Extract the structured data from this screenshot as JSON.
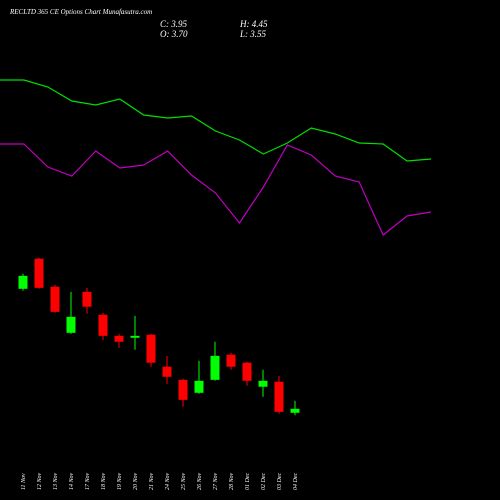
{
  "chart_data": {
    "type": "candlestick",
    "title": "RECLTD 365 CE Options Chart Munafasutra.com",
    "ohlc_labels": {
      "close": "C: 3.95",
      "high": "H: 4.45",
      "open": "O: 3.70",
      "low": "L: 3.55"
    },
    "categories": [
      "11 Nov",
      "12 Nov",
      "13 Nov",
      "14 Nov",
      "17 Nov",
      "18 Nov",
      "19 Nov",
      "20 Nov",
      "21 Nov",
      "24 Nov",
      "25 Nov",
      "26 Nov",
      "27 Nov",
      "28 Nov",
      "01 Dec",
      "02 Dec",
      "03 Dec",
      "04 Dec"
    ],
    "open": [
      11.45,
      13.33,
      11.58,
      8.7,
      11.26,
      9.83,
      8.51,
      8.39,
      8.58,
      6.58,
      5.76,
      4.95,
      5.76,
      7.33,
      6.83,
      5.33,
      5.64,
      3.7
    ],
    "high": [
      12.39,
      13.39,
      11.7,
      11.26,
      11.51,
      9.95,
      8.64,
      9.76,
      8.64,
      7.26,
      5.83,
      6.95,
      8.14,
      7.45,
      6.89,
      6.39,
      6.01,
      4.45
    ],
    "low": [
      11.33,
      11.45,
      9.95,
      8.64,
      9.89,
      8.26,
      7.76,
      7.64,
      6.58,
      5.51,
      4.08,
      4.89,
      5.7,
      6.39,
      5.39,
      4.7,
      3.64,
      3.55
    ],
    "close": [
      12.26,
      11.51,
      10.01,
      9.7,
      10.33,
      8.51,
      8.14,
      8.51,
      6.83,
      5.95,
      4.51,
      5.7,
      7.26,
      6.58,
      5.7,
      5.7,
      3.76,
      3.95
    ],
    "up_color": "#00ff00",
    "down_color": "#ff0000",
    "ylim": [
      1,
      14.5
    ],
    "x": [
      0,
      1,
      2,
      3,
      4,
      5,
      6,
      7,
      8,
      9,
      10,
      11,
      12,
      13,
      14,
      15,
      16,
      17,
      18
    ],
    "xlim": [
      0,
      18
    ],
    "y2lim": [
      0,
      180
    ],
    "series": [
      {
        "color": "#00e000",
        "axis": "y2",
        "values": [
          160,
          160,
          153,
          139,
          135,
          141,
          125,
          122,
          124,
          109,
          100,
          86,
          97,
          112,
          106,
          97,
          96,
          79,
          81
        ]
      },
      {
        "color": "#c000c0",
        "axis": "y2",
        "values": [
          96,
          96,
          73,
          64,
          89,
          72,
          75,
          89,
          65,
          47,
          17,
          53,
          95,
          85,
          64,
          58,
          5,
          24,
          28
        ]
      }
    ]
  }
}
